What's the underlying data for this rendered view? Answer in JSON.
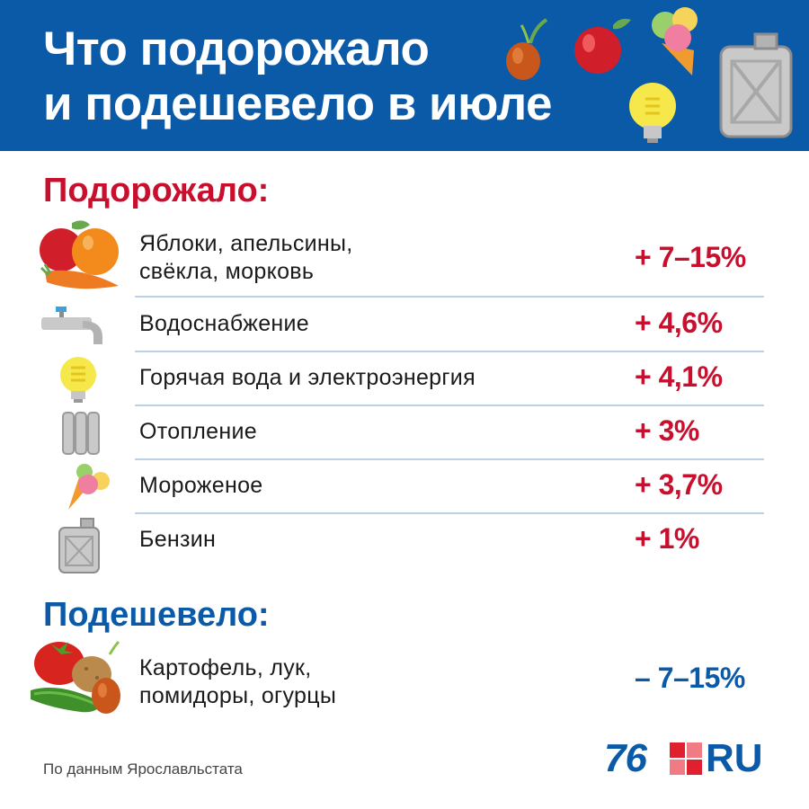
{
  "header": {
    "title_line1": "Что подорожало",
    "title_line2": "и подешевело в июле"
  },
  "increased": {
    "heading": "Подорожало:",
    "items": [
      {
        "label_line1": "Яблоки, апельсины,",
        "label_line2": "свёкла, морковь",
        "value": "+ 7–15%",
        "icon": "fruits-icon"
      },
      {
        "label": "Водоснабжение",
        "value": "+ 4,6%",
        "icon": "water-tap-icon"
      },
      {
        "label": "Горячая вода и электроэнергия",
        "value": "+ 4,1%",
        "icon": "light-bulb-icon"
      },
      {
        "label": "Отопление",
        "value": "+ 3%",
        "icon": "radiator-icon"
      },
      {
        "label": "Мороженое",
        "value": "+ 3,7%",
        "icon": "ice-cream-icon"
      },
      {
        "label": "Бензин",
        "value": "+ 1%",
        "icon": "fuel-canister-icon"
      }
    ]
  },
  "decreased": {
    "heading": "Подешевело:",
    "items": [
      {
        "label_line1": "Картофель, лук,",
        "label_line2": "помидоры, огурцы",
        "value": "– 7–15%",
        "icon": "vegetables-icon"
      }
    ]
  },
  "footer": {
    "source": "По данным Ярославльстата",
    "logo_number": "76",
    "logo_suffix": "RU"
  },
  "colors": {
    "header_blue": "#0a5aa8",
    "increase_red": "#c8102e",
    "decrease_blue": "#0a5aa8"
  }
}
